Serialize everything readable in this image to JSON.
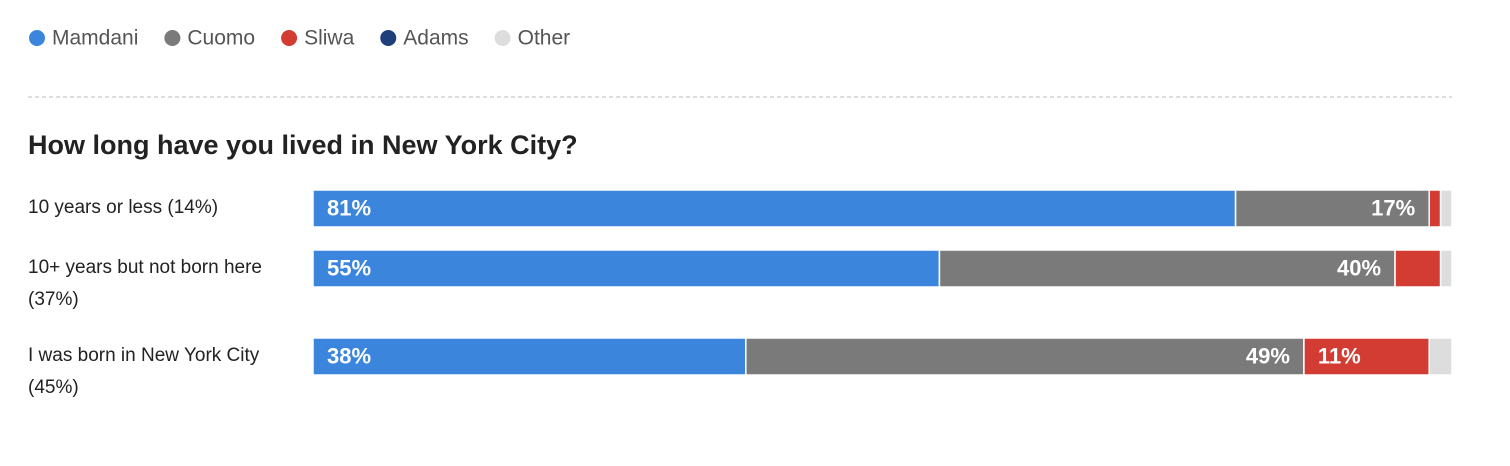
{
  "chart_data": {
    "type": "stacked-bar",
    "orientation": "horizontal",
    "title": "How long have you lived in New York City?",
    "categories": [
      "10 years or less (14%)",
      "10+ years but not born here (37%)",
      "I was born in New York City (45%)"
    ],
    "xlim": [
      0,
      100
    ],
    "series": [
      {
        "name": "Mamdani",
        "color": "#3b86dc",
        "values": [
          81,
          55,
          38
        ],
        "value_labels": [
          "81%",
          "55%",
          "38%"
        ]
      },
      {
        "name": "Cuomo",
        "color": "#7a7a7a",
        "values": [
          17,
          40,
          49
        ],
        "value_labels": [
          "17%",
          "40%",
          "49%"
        ]
      },
      {
        "name": "Sliwa",
        "color": "#d23c33",
        "values": [
          1,
          4,
          11
        ],
        "value_labels": [
          null,
          null,
          "11%"
        ]
      },
      {
        "name": "Adams",
        "color": "#1f3f7a",
        "values": [
          0,
          0,
          0
        ]
      },
      {
        "name": "Other",
        "color": "#dddddd",
        "values": [
          1,
          1,
          2
        ]
      }
    ]
  }
}
